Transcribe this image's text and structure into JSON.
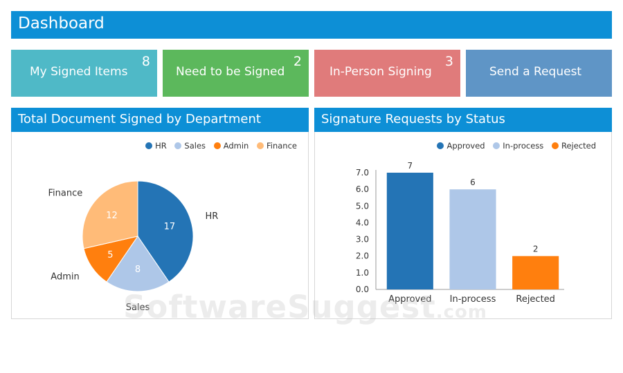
{
  "header": {
    "title": "Dashboard"
  },
  "tiles": [
    {
      "label": "My Signed Items",
      "count": "8",
      "color": "#4fb9c7"
    },
    {
      "label": "Need to be Signed",
      "count": "2",
      "color": "#5cb85c"
    },
    {
      "label": "In-Person Signing",
      "count": "3",
      "color": "#e07b7b"
    },
    {
      "label": "Send a Request",
      "count": "",
      "color": "#5f95c6"
    }
  ],
  "panels": {
    "pie": {
      "title": "Total Document Signed by Department"
    },
    "bar": {
      "title": "Signature Requests by Status"
    }
  },
  "chart_data": [
    {
      "type": "pie",
      "title": "",
      "categories": [
        "HR",
        "Sales",
        "Admin",
        "Finance"
      ],
      "values": [
        17,
        8,
        5,
        12
      ],
      "colors": [
        "#2474b5",
        "#aec7e8",
        "#ff7f0e",
        "#ffbb78"
      ],
      "legend": "top-right"
    },
    {
      "type": "bar",
      "title": "",
      "categories": [
        "Approved",
        "In-process",
        "Rejected"
      ],
      "values": [
        7,
        6,
        2
      ],
      "colors": [
        "#2474b5",
        "#aec7e8",
        "#ff7f0e"
      ],
      "ylim": [
        0,
        7
      ],
      "yticks": [
        "0.0",
        "1.0",
        "2.0",
        "3.0",
        "4.0",
        "5.0",
        "6.0",
        "7.0"
      ],
      "legend": "top-right"
    }
  ],
  "watermark": {
    "main": "SoftwareSuggest",
    "suffix": ".com"
  }
}
